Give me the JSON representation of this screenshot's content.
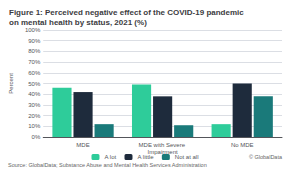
{
  "chart_data": {
    "type": "bar",
    "title": "Figure 1: Perceived negative effect of the COVID-19 pandemic on mental health by status, 2021 (%)",
    "categories": [
      "MDE",
      "MDE with Severe Impairment",
      "No MDE"
    ],
    "series": [
      {
        "name": "A lot",
        "color": "#2ecc9a",
        "values": [
          46,
          49,
          12
        ]
      },
      {
        "name": "A little",
        "color": "#1e2b3c",
        "values": [
          42,
          38,
          50
        ]
      },
      {
        "name": "Not at all",
        "color": "#1a7a7a",
        "values": [
          12,
          11,
          38
        ]
      }
    ],
    "ylabel": "Percent",
    "ylim": [
      0,
      100
    ],
    "yticks": [
      {
        "value": 0,
        "label": "0%"
      },
      {
        "value": 10,
        "label": "10%"
      },
      {
        "value": 20,
        "label": "20%"
      },
      {
        "value": 30,
        "label": "30%"
      },
      {
        "value": 40,
        "label": "40%"
      },
      {
        "value": 50,
        "label": "50%"
      },
      {
        "value": 60,
        "label": "60%"
      },
      {
        "value": 70,
        "label": "70%"
      },
      {
        "value": 80,
        "label": "80%"
      },
      {
        "value": 90,
        "label": "90%"
      },
      {
        "value": 100,
        "label": "100%"
      }
    ],
    "grid": true,
    "legend": "bottom",
    "annotations": [
      "Source: GlobalData; Substance Abuse and Mental Health Services Administration",
      "© GlobalData"
    ]
  }
}
